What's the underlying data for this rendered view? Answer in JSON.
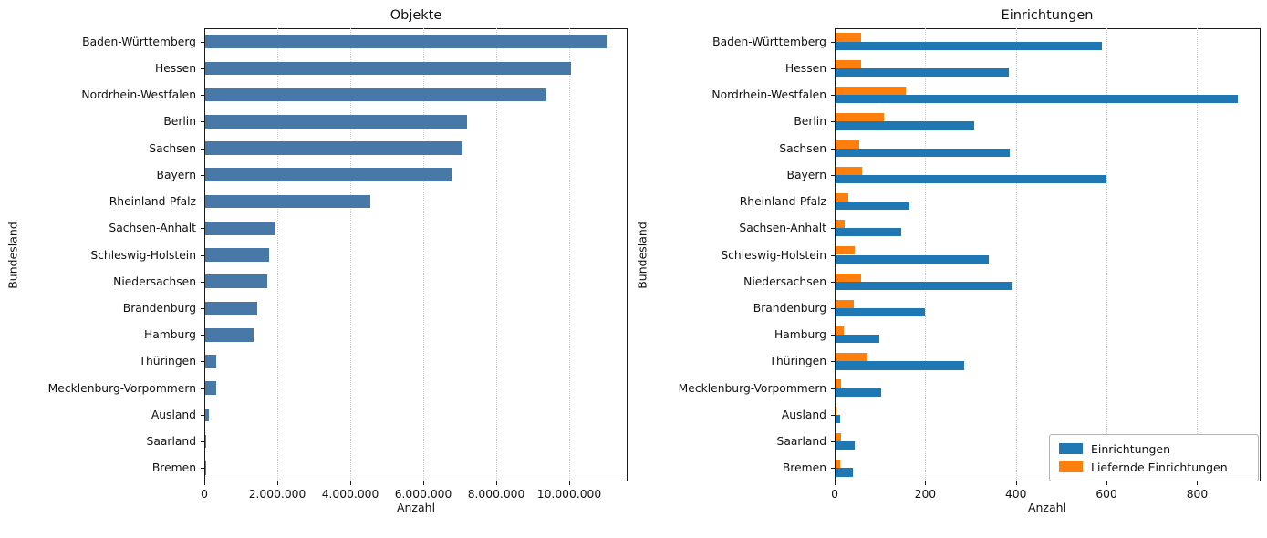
{
  "chart_data": [
    {
      "type": "bar",
      "orientation": "horizontal",
      "title": "Objekte",
      "xlabel": "Anzahl",
      "ylabel": "Bundesland",
      "grid": "dotted-vertical",
      "bar_color": "#4878a8",
      "xlim": [
        0,
        11600000
      ],
      "xticks": [
        0,
        2000000,
        4000000,
        6000000,
        8000000,
        10000000
      ],
      "xtick_labels": [
        "0",
        "2.000.000",
        "4.000.000",
        "6.000.000",
        "8.000.000",
        "10.000.000"
      ],
      "categories": [
        "Baden-Württemberg",
        "Hessen",
        "Nordrhein-Westfalen",
        "Berlin",
        "Sachsen",
        "Bayern",
        "Rheinland-Pfalz",
        "Sachsen-Anhalt",
        "Schleswig-Holstein",
        "Niedersachsen",
        "Brandenburg",
        "Hamburg",
        "Thüringen",
        "Mecklenburg-Vorpommern",
        "Ausland",
        "Saarland",
        "Bremen"
      ],
      "values": [
        11030000,
        10060000,
        9370000,
        7210000,
        7080000,
        6780000,
        4550000,
        1940000,
        1770000,
        1730000,
        1460000,
        1360000,
        325000,
        320000,
        130000,
        40000,
        50000
      ]
    },
    {
      "type": "bar",
      "orientation": "horizontal",
      "title": "Einrichtungen",
      "xlabel": "Anzahl",
      "ylabel": "Bundesland",
      "grid": "dotted-vertical",
      "xlim": [
        0,
        940
      ],
      "xticks": [
        0,
        200,
        400,
        600,
        800
      ],
      "xtick_labels": [
        "0",
        "200",
        "400",
        "600",
        "800"
      ],
      "categories": [
        "Baden-Württemberg",
        "Hessen",
        "Nordrhein-Westfalen",
        "Berlin",
        "Sachsen",
        "Bayern",
        "Rheinland-Pfalz",
        "Sachsen-Anhalt",
        "Schleswig-Holstein",
        "Niedersachsen",
        "Brandenburg",
        "Hamburg",
        "Thüringen",
        "Mecklenburg-Vorpommern",
        "Ausland",
        "Saarland",
        "Bremen"
      ],
      "series": [
        {
          "name": "Einrichtungen",
          "color": "#1f77b4",
          "values": [
            590,
            385,
            890,
            308,
            387,
            600,
            166,
            147,
            340,
            390,
            200,
            98,
            286,
            103,
            13,
            44,
            40
          ]
        },
        {
          "name": "Liefernde Einrichtungen",
          "color": "#ff7f0e",
          "values": [
            59,
            59,
            158,
            108,
            55,
            60,
            30,
            22,
            44,
            58,
            42,
            20,
            72,
            15,
            3,
            15,
            12
          ]
        }
      ],
      "legend": {
        "position": "lower right",
        "entries": [
          "Einrichtungen",
          "Liefernde Einrichtungen"
        ]
      }
    }
  ]
}
